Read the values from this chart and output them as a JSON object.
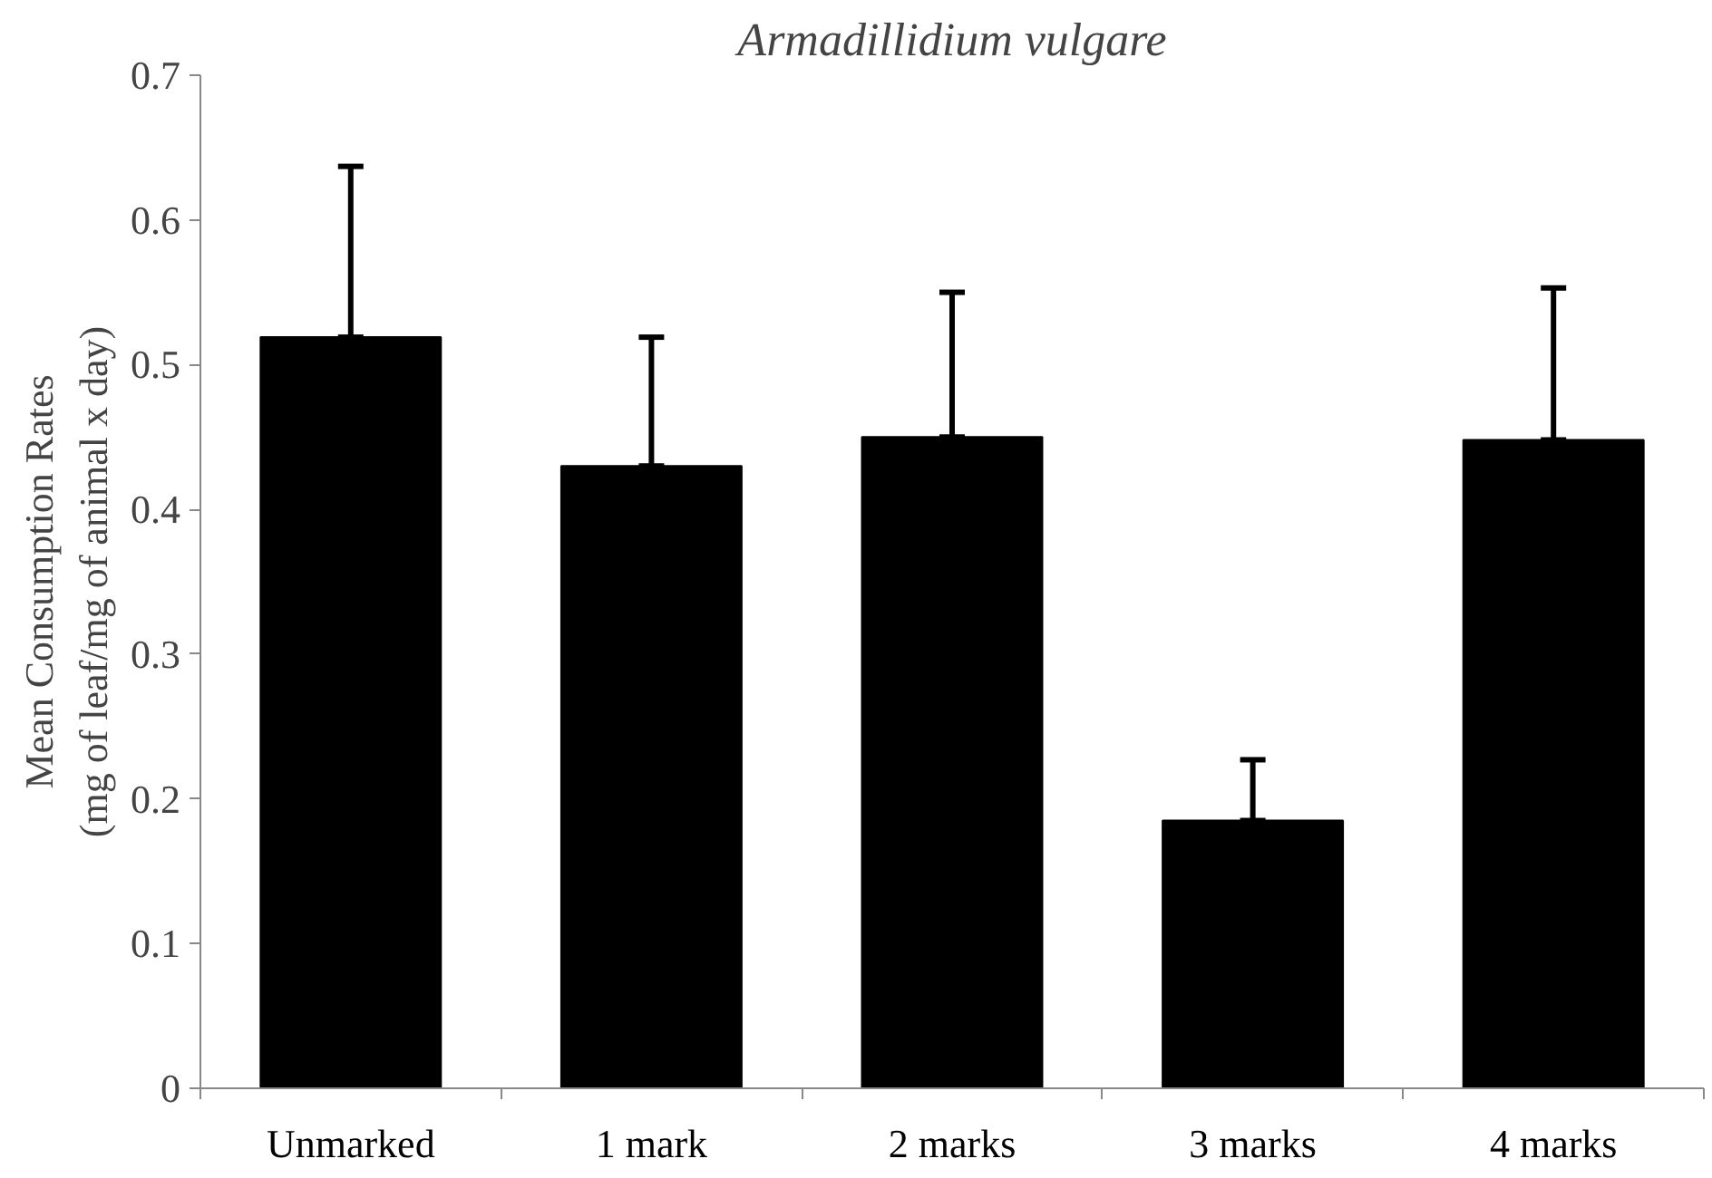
{
  "chart_data": {
    "type": "bar",
    "title": "Armadillidium vulgare",
    "ylabel": "Mean Consumption Rates\n(mg of leaf/mg of animal x day)",
    "categories": [
      "Unmarked",
      "1 mark",
      "2 marks",
      "3 marks",
      "4 marks"
    ],
    "values": [
      0.519,
      0.43,
      0.45,
      0.185,
      0.448
    ],
    "errors": [
      [
        0.519,
        0.637
      ],
      [
        0.43,
        0.519
      ],
      [
        0.45,
        0.55
      ],
      [
        0.185,
        0.227
      ],
      [
        0.448,
        0.553
      ]
    ],
    "color": "#000000",
    "ylim": [
      0,
      0.7
    ],
    "yticks": [
      {
        "value": 0,
        "label": "0"
      },
      0.1,
      0.2,
      0.3,
      0.4,
      0.5,
      0.6,
      0.7
    ],
    "grid": false
  }
}
